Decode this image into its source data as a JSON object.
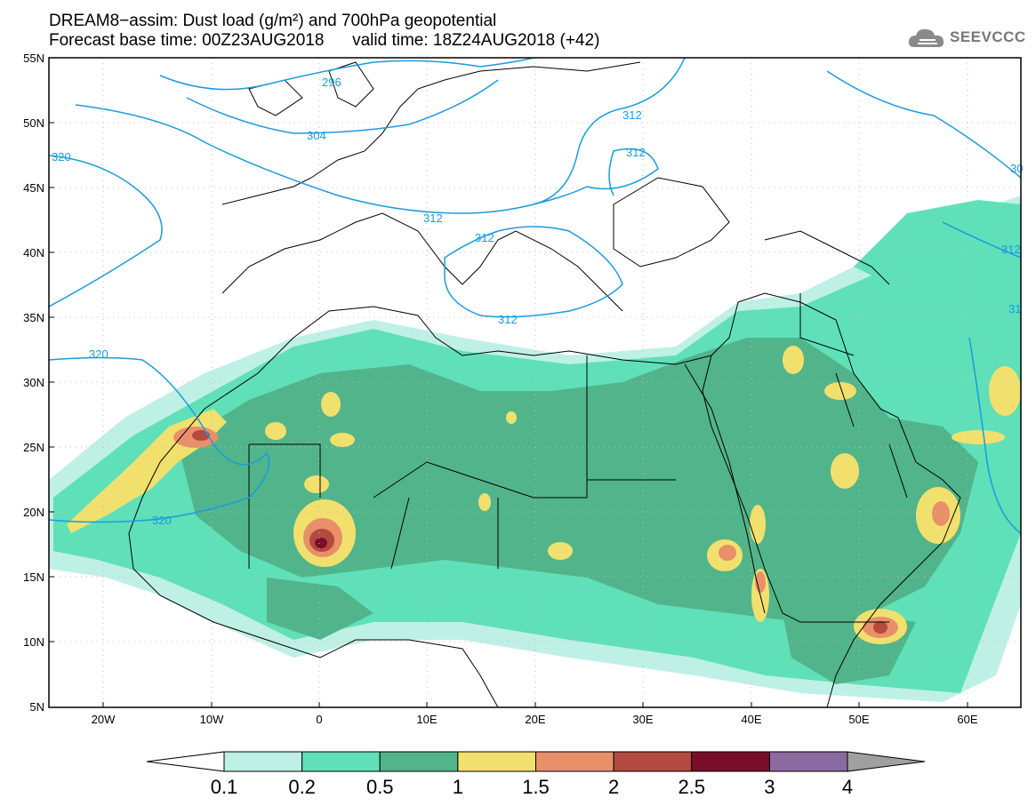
{
  "title": {
    "line1": "DREAM8−assim: Dust load (g/m²) and 700hPa geopotential",
    "line2": "Forecast base time: 00Z23AUG2018      valid time: 18Z24AUG2018 (+42)"
  },
  "logo": {
    "text": "SEEVCCC",
    "icon": "cloud-logo-icon"
  },
  "axes": {
    "lat_labels": [
      "55N",
      "50N",
      "45N",
      "40N",
      "35N",
      "30N",
      "25N",
      "20N",
      "15N",
      "10N",
      "5N"
    ],
    "lon_labels": [
      "20W",
      "10W",
      "0",
      "10E",
      "20E",
      "30E",
      "40E",
      "50E",
      "60E"
    ]
  },
  "contour_labels": [
    "296",
    "304",
    "312",
    "312",
    "312",
    "312",
    "312",
    "320",
    "320",
    "320",
    "312",
    "31",
    "30"
  ],
  "colorbar": {
    "ticks": [
      "0.1",
      "0.2",
      "0.5",
      "1",
      "1.5",
      "2",
      "2.5",
      "3",
      "4"
    ],
    "colors": [
      "#ffffff",
      "#bff0e6",
      "#5fe0b8",
      "#52b48a",
      "#f2e06e",
      "#e98f6a",
      "#b24a3f",
      "#7a0e2a",
      "#8a6aa0",
      "#a0a0a0"
    ]
  }
}
